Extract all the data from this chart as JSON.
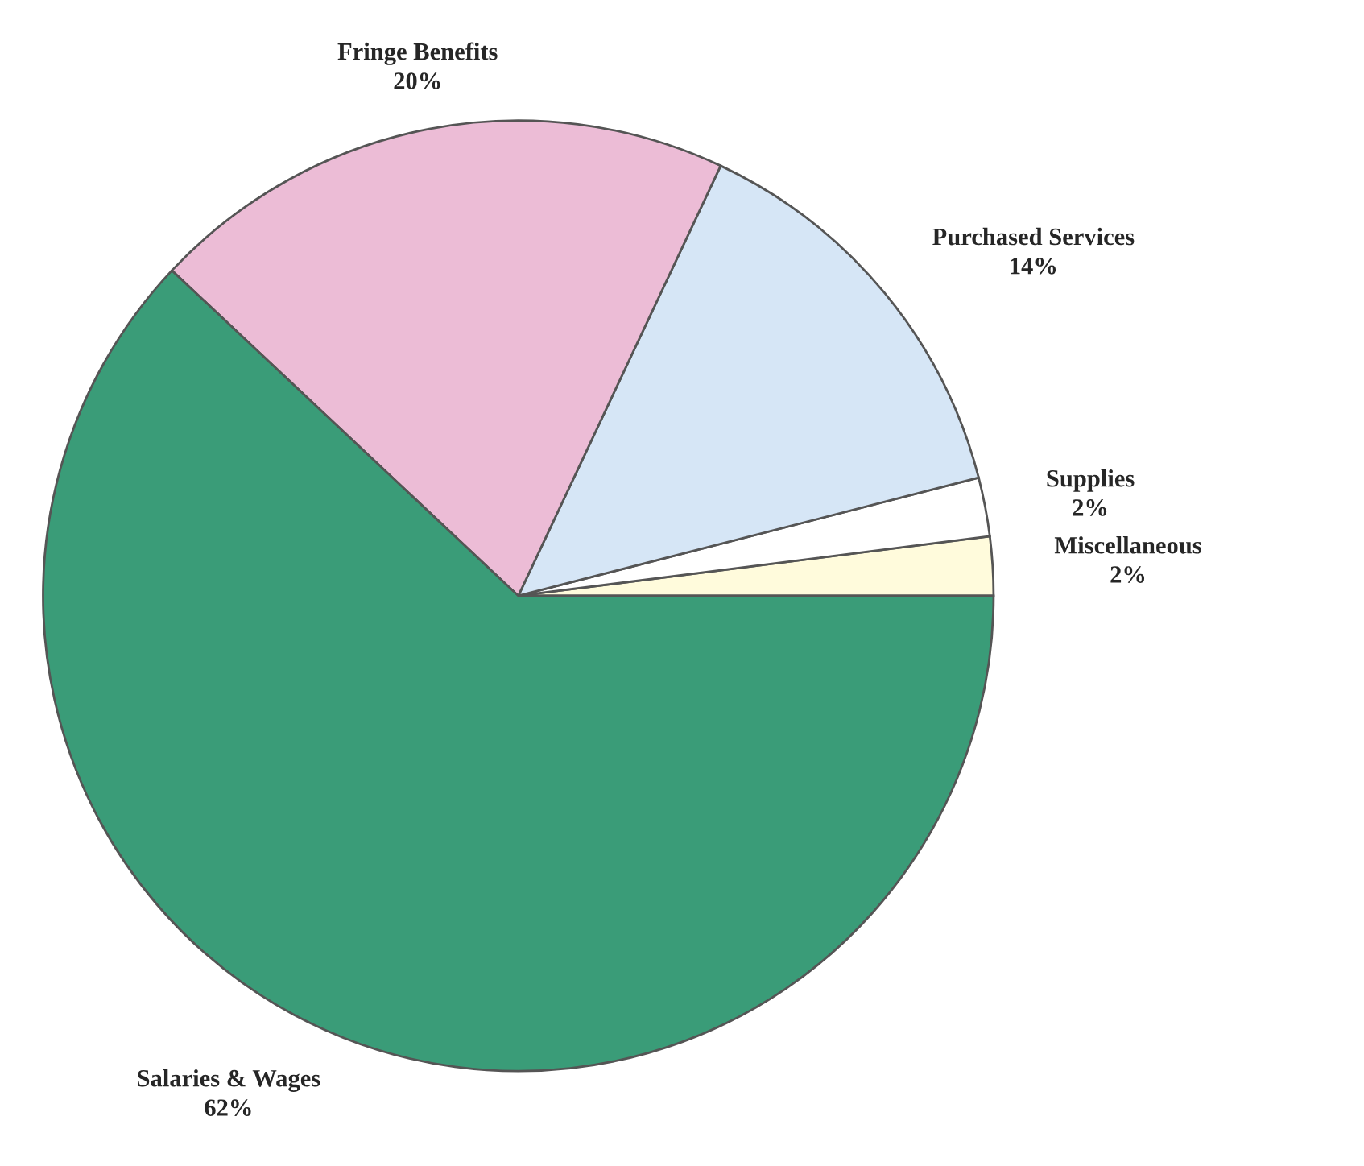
{
  "chart_data": {
    "type": "pie",
    "categories": [
      "Miscellaneous",
      "Supplies",
      "Purchased Services",
      "Fringe Benefits",
      "Salaries & Wages"
    ],
    "values": [
      2,
      2,
      14,
      20,
      62
    ],
    "value_labels": [
      "2%",
      "2%",
      "14%",
      "20%",
      "62%"
    ],
    "colors": [
      "#fffbdc",
      "#ffffff",
      "#d6e6f6",
      "#ecbcd6",
      "#3a9c78"
    ]
  }
}
